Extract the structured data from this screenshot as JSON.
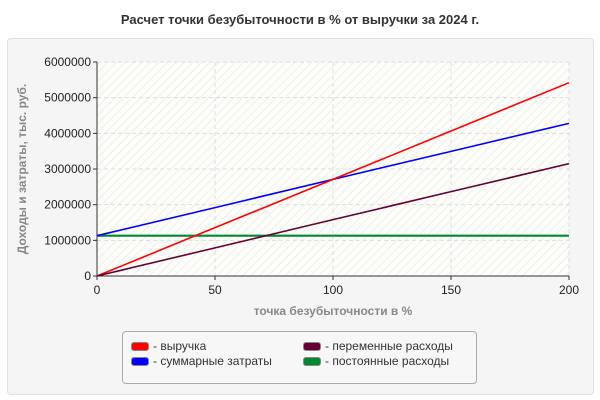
{
  "chart_data": {
    "type": "line",
    "title": "Расчет точки безубыточности в % от выручки за 2024 г.",
    "xlabel": "точка безубыточности в %",
    "ylabel": "Доходы и затраты,  тыс. руб.",
    "xlim": [
      0,
      200
    ],
    "ylim": [
      0,
      6000000
    ],
    "xticks": [
      "0",
      "50",
      "100",
      "150",
      "200"
    ],
    "yticks": [
      "0",
      "1000000",
      "2000000",
      "3000000",
      "4000000",
      "5000000",
      "6000000"
    ],
    "grid": true,
    "legend_placement": "bottom",
    "x": [
      0,
      50,
      100,
      150,
      200
    ],
    "series": [
      {
        "name": "- выручка",
        "color": "#ff0000",
        "values": [
          0,
          1355000,
          2710000,
          4065000,
          5420000
        ]
      },
      {
        "name": "- суммарные затраты",
        "color": "#0000ff",
        "values": [
          1130000,
          1918000,
          2710000,
          3495000,
          4280000
        ]
      },
      {
        "name": "- переменные расходы",
        "color": "#660033",
        "values": [
          0,
          788000,
          1580000,
          2365000,
          3150000
        ]
      },
      {
        "name": "- постоянные расходы",
        "color": "#008833",
        "values": [
          1130000,
          1130000,
          1130000,
          1130000,
          1130000
        ]
      }
    ]
  }
}
